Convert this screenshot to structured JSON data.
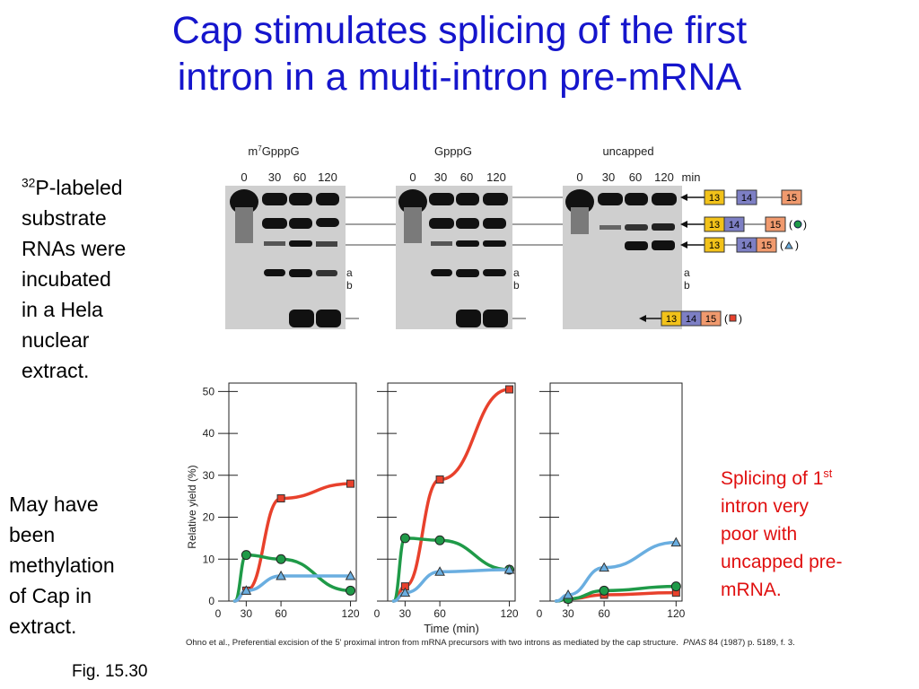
{
  "slide": {
    "title_line1": "Cap stimulates splicing of the first",
    "title_line2": "intron in a multi-intron pre-mRNA",
    "left_top": {
      "sup": "32",
      "line1": "P-labeled",
      "lines": [
        "substrate",
        "RNAs were",
        "incubated",
        "in a Hela",
        "nuclear",
        "extract."
      ]
    },
    "left_bottom": [
      "May have",
      "been",
      "methylation",
      "of Cap in",
      "extract."
    ],
    "right_note": {
      "pre": "Splicing of 1",
      "sup": "st",
      "lines": [
        "intron very",
        "poor with",
        "uncapped pre-",
        "mRNA."
      ]
    },
    "fig_label": "Fig. 15.30",
    "citation": {
      "text": "Ohno et al., Preferential excision of the 5' proximal intron from mRNA precursors with two introns as mediated by the cap structure.",
      "journal": "PNAS",
      "ref": "84 (1987) p. 5189, f. 3."
    }
  },
  "gel": {
    "panel_labels": [
      "m7GpppG",
      "GpppG",
      "uncapped"
    ],
    "lane_labels": [
      "0",
      "30",
      "60",
      "120"
    ],
    "unit": "min",
    "band_letters": [
      "a",
      "b"
    ],
    "exons": [
      "13",
      "14",
      "15"
    ],
    "species_symbols": [
      "circle",
      "triangle",
      "square"
    ],
    "colors": {
      "exon13": "#f2c21a",
      "exon14": "#7d7fc4",
      "exon15": "#f09a6e"
    }
  },
  "chart_data": [
    {
      "type": "line",
      "panel": "m7GpppG",
      "xlabel": "",
      "ylabel": "Relative yield (%)",
      "x_ticks": [
        30,
        60,
        120
      ],
      "y_ticks": [
        0,
        10,
        20,
        30,
        40,
        50
      ],
      "ylim": [
        0,
        52
      ],
      "series": [
        {
          "symbol": "square",
          "color": "#e8412c",
          "x": [
            30,
            60,
            120
          ],
          "y": [
            2.5,
            24.5,
            28
          ]
        },
        {
          "symbol": "circle",
          "color": "#1f9a48",
          "x": [
            30,
            60,
            120
          ],
          "y": [
            11,
            10,
            2.5
          ]
        },
        {
          "symbol": "triangle",
          "color": "#6aaee0",
          "x": [
            30,
            60,
            120
          ],
          "y": [
            2.5,
            6,
            6
          ]
        }
      ]
    },
    {
      "type": "line",
      "panel": "GpppG",
      "xlabel": "Time (min)",
      "ylabel": "",
      "x_ticks": [
        30,
        60,
        120
      ],
      "ylim": [
        0,
        52
      ],
      "series": [
        {
          "symbol": "square",
          "color": "#e8412c",
          "x": [
            30,
            60,
            120
          ],
          "y": [
            3.5,
            29,
            50.5
          ]
        },
        {
          "symbol": "circle",
          "color": "#1f9a48",
          "x": [
            30,
            60,
            120
          ],
          "y": [
            15,
            14.5,
            7.5
          ]
        },
        {
          "symbol": "triangle",
          "color": "#6aaee0",
          "x": [
            30,
            60,
            120
          ],
          "y": [
            2,
            7,
            7.5
          ]
        }
      ]
    },
    {
      "type": "line",
      "panel": "uncapped",
      "xlabel": "",
      "ylabel": "",
      "x_ticks": [
        30,
        60,
        120
      ],
      "ylim": [
        0,
        52
      ],
      "series": [
        {
          "symbol": "square",
          "color": "#e8412c",
          "x": [
            30,
            60,
            120
          ],
          "y": [
            0.5,
            1.5,
            2
          ]
        },
        {
          "symbol": "circle",
          "color": "#1f9a48",
          "x": [
            30,
            60,
            120
          ],
          "y": [
            0.5,
            2.5,
            3.5
          ]
        },
        {
          "symbol": "triangle",
          "color": "#6aaee0",
          "x": [
            30,
            60,
            120
          ],
          "y": [
            1.5,
            8,
            14
          ]
        }
      ]
    }
  ]
}
